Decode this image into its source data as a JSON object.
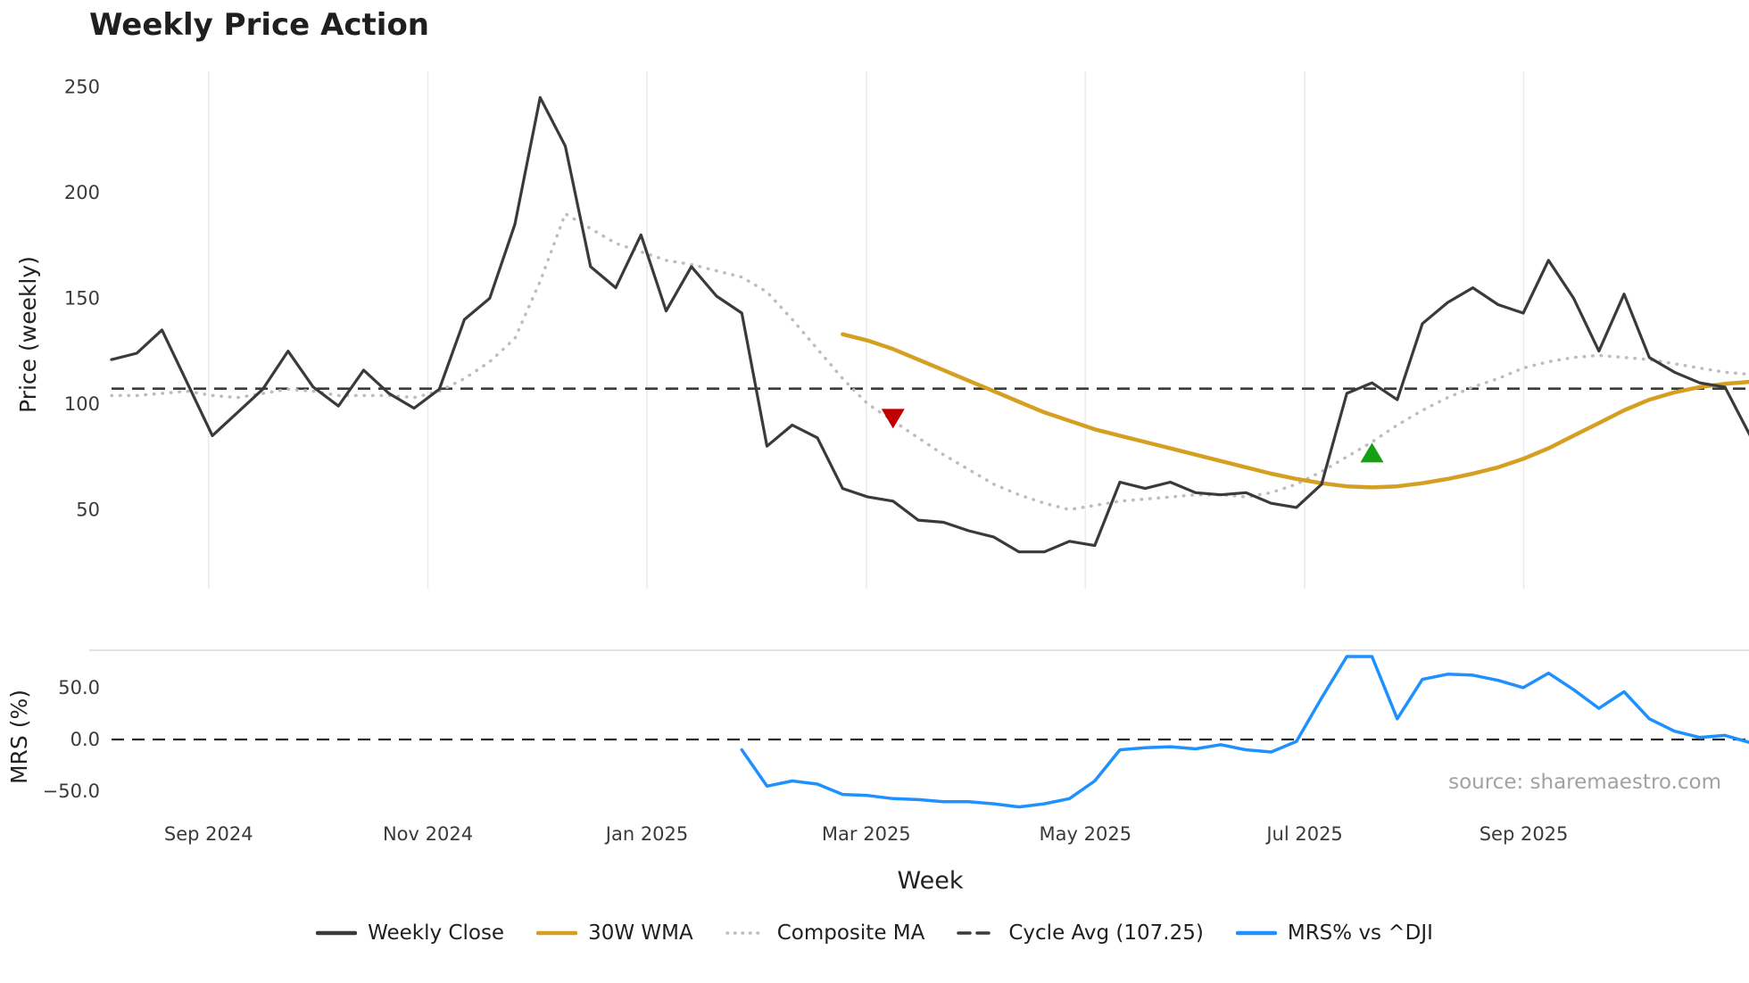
{
  "title": "Weekly Price Action",
  "source": "source: sharemaestro.com",
  "axes": {
    "main_ylabel": "Price (weekly)",
    "mrs_ylabel": "MRS (%)",
    "xlabel": "Week"
  },
  "legend": {
    "items": [
      {
        "label": "Weekly Close",
        "style": "solid",
        "color": "#3a3a3a"
      },
      {
        "label": "30W WMA",
        "style": "solid",
        "color": "#d5a021"
      },
      {
        "label": "Composite MA",
        "style": "dotted",
        "color": "#bdbdbd"
      },
      {
        "label": "Cycle Avg (107.25)",
        "style": "dashed",
        "color": "#3a3a3a"
      },
      {
        "label": "MRS% vs ^DJI",
        "style": "solid",
        "color": "#1e90ff"
      }
    ]
  },
  "chart_data": {
    "type": "line",
    "x_unit": "weekly, Aug 2024 - Nov 2025",
    "x_ticks": [
      {
        "label": "Sep 2024",
        "week": 3.85
      },
      {
        "label": "Nov 2024",
        "week": 12.55
      },
      {
        "label": "Jan 2025",
        "week": 21.24
      },
      {
        "label": "Mar 2025",
        "week": 29.94
      },
      {
        "label": "May 2025",
        "week": 38.63
      },
      {
        "label": "Jul 2025",
        "week": 47.33
      },
      {
        "label": "Sep 2025",
        "week": 56.02
      }
    ],
    "main_panel": {
      "ylabel": "Price (weekly)",
      "ylim": [
        13,
        258
      ],
      "yticks": [
        250,
        200,
        150,
        100,
        50
      ],
      "cycle_avg": 107.25,
      "grid": "vertical-light",
      "series": [
        {
          "name": "Composite MA",
          "color": "#bdbdbd",
          "style": "dotted",
          "width": 3.5,
          "start_week": 0,
          "values": [
            104,
            104,
            105,
            106,
            104,
            103,
            105,
            107,
            106,
            104,
            104,
            104,
            103,
            106,
            112,
            120,
            131,
            158,
            190,
            183,
            176,
            172,
            168,
            166,
            163,
            160,
            153,
            140,
            126,
            112,
            100,
            92,
            84,
            76,
            69,
            62,
            57,
            53,
            50,
            52,
            54,
            55,
            56,
            57,
            57,
            56,
            58,
            62,
            68,
            75,
            82,
            90,
            97,
            103,
            108,
            112,
            117,
            120,
            122,
            123,
            122,
            121,
            119,
            117,
            115,
            114
          ]
        },
        {
          "name": "30W WMA",
          "color": "#d5a021",
          "style": "solid",
          "width": 4.5,
          "start_week": 29,
          "values": [
            133,
            130,
            126,
            121,
            116,
            111,
            106,
            101,
            96,
            92,
            88,
            85,
            82,
            79,
            76,
            73,
            70,
            67,
            64.5,
            62.5,
            61,
            60.5,
            61,
            62.5,
            64.5,
            67,
            70,
            74,
            79,
            85,
            91,
            97,
            102,
            105.5,
            108,
            109.5,
            110.5
          ]
        },
        {
          "name": "Weekly Close",
          "color": "#3a3a3a",
          "style": "solid",
          "width": 3.2,
          "start_week": 0,
          "values": [
            121,
            124,
            135,
            110,
            85,
            96,
            107,
            125,
            108,
            99,
            116,
            105,
            98,
            107,
            140,
            150,
            185,
            245,
            222,
            165,
            155,
            180,
            144,
            165,
            151,
            143,
            80,
            90,
            84,
            60,
            56,
            54,
            45,
            44,
            40,
            37,
            30,
            30,
            35,
            33,
            63,
            60,
            63,
            58,
            57,
            58,
            53,
            51,
            62,
            105,
            110,
            102,
            138,
            148,
            155,
            147,
            143,
            168,
            150,
            125,
            152,
            122,
            115,
            110,
            108,
            85
          ]
        }
      ],
      "markers": [
        {
          "name": "sell-signal",
          "shape": "triangle-down",
          "color": "#c00000",
          "week": 31,
          "value": 93
        },
        {
          "name": "buy-signal",
          "shape": "triangle-up",
          "color": "#14a014",
          "week": 50,
          "value": 77
        }
      ]
    },
    "mrs_panel": {
      "ylabel": "MRS (%)",
      "ylim": [
        -75,
        90
      ],
      "yticks": [
        {
          "label": "50.0",
          "value": 50
        },
        {
          "label": "0.0",
          "value": 0
        },
        {
          "label": "−50.0",
          "value": -50
        }
      ],
      "zero_line": 0,
      "series": [
        {
          "name": "MRS% vs ^DJI",
          "color": "#1e90ff",
          "style": "solid",
          "width": 3.5,
          "start_week": 25,
          "values": [
            -10,
            -45,
            -40,
            -43,
            -53,
            -54,
            -57,
            -58,
            -60,
            -60,
            -62,
            -65,
            -62,
            -57,
            -40,
            -10,
            -8,
            -7,
            -9,
            -5,
            -10,
            -12,
            -2,
            40,
            80,
            80,
            20,
            58,
            63,
            62,
            57,
            50,
            64,
            48,
            30,
            46,
            20,
            8,
            2,
            4,
            -3
          ]
        }
      ]
    }
  }
}
